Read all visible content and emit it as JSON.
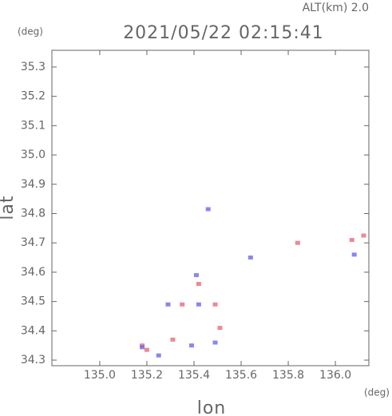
{
  "chart_data": {
    "type": "scatter",
    "altitude_label": "ALT(km) 2.0",
    "title": "2021/05/22 02:15:41",
    "y_unit": "(deg)",
    "x_unit": "(deg)",
    "y_label": "lat",
    "x_label": "lon",
    "xlim": [
      134.797,
      136.142
    ],
    "ylim": [
      34.281,
      35.357
    ],
    "xticks": [
      {
        "value": 135,
        "label": "135.0"
      },
      135.2,
      135.4,
      135.6,
      135.8,
      {
        "value": 136,
        "label": "136.0"
      }
    ],
    "yticks": [
      34.3,
      34.4,
      34.5,
      34.6,
      34.7,
      34.8,
      34.9,
      {
        "value": 35,
        "label": "35.0"
      },
      35.1,
      35.2,
      35.3
    ],
    "series": [
      {
        "color": "#e86a7a",
        "x": [
          135.2,
          135.31,
          135.35,
          135.42,
          135.51,
          135.49,
          135.84,
          136.07,
          136.12,
          135.18
        ],
        "y": [
          34.335,
          34.37,
          34.49,
          34.56,
          34.41,
          34.49,
          34.7,
          34.71,
          34.725,
          34.35
        ]
      },
      {
        "color": "#6a6ae8",
        "x": [
          135.18,
          135.25,
          135.39,
          135.42,
          135.41,
          135.49,
          135.46,
          135.64,
          136.08,
          135.29
        ],
        "y": [
          34.344,
          34.316,
          34.35,
          34.49,
          34.59,
          34.36,
          34.815,
          34.65,
          34.66,
          34.49
        ]
      }
    ]
  }
}
